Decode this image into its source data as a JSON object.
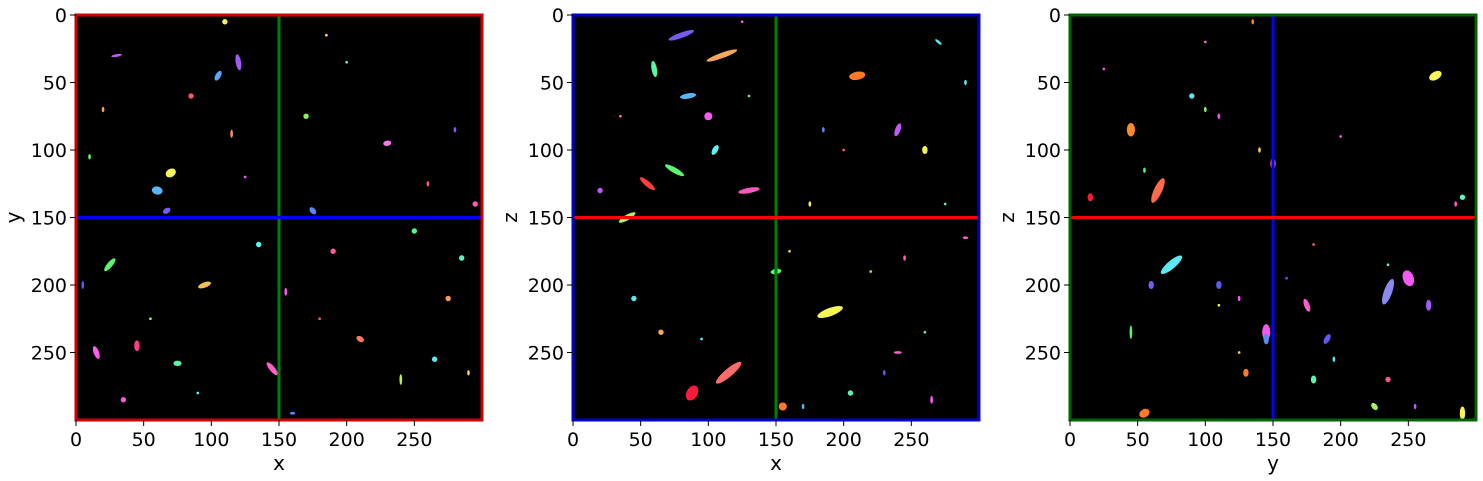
{
  "figure": {
    "background": "#ffffff",
    "image_background": "#000000"
  },
  "chart_data": [
    {
      "type": "heatmap",
      "subtype": "image-slice",
      "xlabel": "x",
      "ylabel": "y",
      "xlim": [
        0,
        300
      ],
      "ylim": [
        300,
        0
      ],
      "xticks": [
        0,
        50,
        100,
        150,
        200,
        250
      ],
      "yticks": [
        0,
        50,
        100,
        150,
        200,
        250
      ],
      "frame_color": "#cc0000",
      "crosshair": {
        "vertical": {
          "value": 150,
          "color": "#008000"
        },
        "horizontal": {
          "value": 150,
          "color": "#0000ff"
        }
      },
      "grid": false,
      "blobs": [
        [
          15,
          250,
          "#ff5ef0",
          2,
          5,
          -20
        ],
        [
          25,
          185,
          "#5af56c",
          2,
          6,
          40
        ],
        [
          30,
          30,
          "#c05af5",
          1,
          4,
          80
        ],
        [
          45,
          245,
          "#ff3d8a",
          2,
          4,
          0
        ],
        [
          60,
          130,
          "#5ab4f5",
          4,
          3,
          10
        ],
        [
          67,
          145,
          "#7a5af5",
          2,
          3,
          60
        ],
        [
          70,
          117,
          "#f5f55a",
          4,
          3,
          -30
        ],
        [
          75,
          258,
          "#5af5a8",
          3,
          2,
          0
        ],
        [
          85,
          60,
          "#f55a5a",
          2,
          2,
          0
        ],
        [
          95,
          200,
          "#f5c05a",
          2,
          5,
          70
        ],
        [
          105,
          45,
          "#5aa8f5",
          4,
          2,
          -60
        ],
        [
          115,
          88,
          "#ff8a5a",
          1,
          3,
          0
        ],
        [
          120,
          35,
          "#a05af5",
          2,
          6,
          -10
        ],
        [
          135,
          170,
          "#5af5f5",
          2,
          2,
          20
        ],
        [
          145,
          262,
          "#ff5ec8",
          2,
          6,
          -40
        ],
        [
          155,
          205,
          "#f55af0",
          1,
          3,
          0
        ],
        [
          170,
          75,
          "#8af55a",
          2,
          2,
          0
        ],
        [
          175,
          145,
          "#5a8af5",
          3,
          2,
          50
        ],
        [
          185,
          15,
          "#f5e85a",
          1,
          1,
          0
        ],
        [
          190,
          175,
          "#ff5a9a",
          2,
          2,
          0
        ],
        [
          200,
          35,
          "#5af5d0",
          1,
          1,
          0
        ],
        [
          210,
          240,
          "#ff7a5a",
          3,
          2,
          30
        ],
        [
          225,
          150,
          "#5a5af5",
          1,
          1,
          0
        ],
        [
          230,
          95,
          "#f57ae8",
          2,
          3,
          80
        ],
        [
          240,
          270,
          "#a8f55a",
          1,
          4,
          0
        ],
        [
          250,
          160,
          "#5af58a",
          2,
          2,
          -20
        ],
        [
          260,
          125,
          "#f55a8a",
          1,
          2,
          0
        ],
        [
          265,
          255,
          "#5ae8f5",
          2,
          2,
          10
        ],
        [
          275,
          210,
          "#ff9a5a",
          2,
          2,
          0
        ],
        [
          280,
          85,
          "#8a5af5",
          1,
          2,
          0
        ],
        [
          285,
          180,
          "#5af5c0",
          2,
          2,
          40
        ],
        [
          290,
          265,
          "#f5d05a",
          1,
          2,
          0
        ],
        [
          295,
          140,
          "#ff5ab4",
          2,
          2,
          0
        ],
        [
          10,
          105,
          "#5af55a",
          1,
          2,
          0
        ],
        [
          20,
          70,
          "#f5a85a",
          1,
          2,
          0
        ],
        [
          5,
          200,
          "#5a5af0",
          1,
          3,
          0
        ],
        [
          35,
          285,
          "#f55ad8",
          2,
          2,
          0
        ],
        [
          90,
          280,
          "#5af5e8",
          1,
          1,
          0
        ],
        [
          110,
          5,
          "#f5f55a",
          2,
          2,
          0
        ],
        [
          160,
          295,
          "#5a8af5",
          2,
          1,
          0
        ],
        [
          180,
          225,
          "#ff5a5a",
          1,
          1,
          0
        ],
        [
          55,
          225,
          "#8af5a0",
          1,
          1,
          0
        ],
        [
          125,
          120,
          "#f55af5",
          1,
          1,
          0
        ]
      ]
    },
    {
      "type": "heatmap",
      "subtype": "image-slice",
      "xlabel": "x",
      "ylabel": "z",
      "xlim": [
        0,
        300
      ],
      "ylim": [
        300,
        0
      ],
      "xticks": [
        0,
        50,
        100,
        150,
        200,
        250
      ],
      "yticks": [
        0,
        50,
        100,
        150,
        200,
        250
      ],
      "frame_color": "#0000cc",
      "crosshair": {
        "vertical": {
          "value": 150,
          "color": "#008000"
        },
        "horizontal": {
          "value": 150,
          "color": "#ff0000"
        }
      },
      "grid": false,
      "blobs": [
        [
          80,
          15,
          "#7a5af5",
          2,
          10,
          70
        ],
        [
          110,
          30,
          "#f5a85a",
          2,
          12,
          70
        ],
        [
          60,
          40,
          "#5af5a0",
          2,
          6,
          -10
        ],
        [
          85,
          60,
          "#5ab4f5",
          2,
          6,
          80
        ],
        [
          100,
          75,
          "#f55af0",
          3,
          3,
          0
        ],
        [
          105,
          100,
          "#5af5f5",
          2,
          4,
          30
        ],
        [
          75,
          115,
          "#5af56c",
          2,
          8,
          -60
        ],
        [
          55,
          125,
          "#ff3d3d",
          2,
          7,
          -50
        ],
        [
          40,
          150,
          "#a8f55a",
          2,
          7,
          60
        ],
        [
          130,
          130,
          "#f55ac0",
          2,
          8,
          80
        ],
        [
          175,
          140,
          "#f5f55a",
          1,
          2,
          0
        ],
        [
          210,
          45,
          "#ff7a2a",
          3,
          6,
          80
        ],
        [
          240,
          85,
          "#c05af5",
          2,
          5,
          20
        ],
        [
          260,
          100,
          "#f5f55a",
          2,
          3,
          0
        ],
        [
          270,
          20,
          "#5ae8f5",
          1,
          3,
          -50
        ],
        [
          150,
          190,
          "#5af56c",
          2,
          4,
          80
        ],
        [
          190,
          220,
          "#f5f55a",
          3,
          10,
          70
        ],
        [
          205,
          280,
          "#5af5a8",
          2,
          2,
          0
        ],
        [
          245,
          180,
          "#ff5ec8",
          1,
          2,
          0
        ],
        [
          115,
          265,
          "#ff6a6a",
          3,
          12,
          50
        ],
        [
          88,
          280,
          "#ff1a3d",
          4,
          6,
          30
        ],
        [
          155,
          290,
          "#ff7a2a",
          3,
          3,
          0
        ],
        [
          170,
          290,
          "#5ab4f5",
          1,
          2,
          0
        ],
        [
          240,
          250,
          "#ff5ec8",
          3,
          1,
          0
        ],
        [
          230,
          265,
          "#5a5af5",
          1,
          2,
          0
        ],
        [
          265,
          285,
          "#f55af0",
          1,
          3,
          0
        ],
        [
          290,
          165,
          "#ff5ec8",
          2,
          1,
          0
        ],
        [
          290,
          50,
          "#5ae8f5",
          1,
          2,
          0
        ],
        [
          130,
          60,
          "#5af55a",
          1,
          1,
          0
        ],
        [
          150,
          235,
          "#ff5a5a",
          1,
          1,
          0
        ],
        [
          20,
          130,
          "#c05af5",
          2,
          2,
          0
        ],
        [
          45,
          210,
          "#5ae8f5",
          2,
          2,
          0
        ],
        [
          65,
          235,
          "#f5a85a",
          2,
          2,
          0
        ],
        [
          185,
          85,
          "#5a8af5",
          1,
          2,
          0
        ],
        [
          220,
          190,
          "#8af55a",
          1,
          1,
          0
        ],
        [
          260,
          235,
          "#5af5c0",
          1,
          1,
          0
        ],
        [
          160,
          175,
          "#f5d05a",
          1,
          1,
          0
        ],
        [
          95,
          240,
          "#5af5e8",
          1,
          1,
          0
        ],
        [
          125,
          5,
          "#f55ad8",
          1,
          1,
          0
        ],
        [
          35,
          75,
          "#ff7a5a",
          1,
          1,
          0
        ],
        [
          275,
          140,
          "#5af5a8",
          1,
          1,
          0
        ],
        [
          200,
          100,
          "#f55a8a",
          1,
          1,
          0
        ]
      ]
    },
    {
      "type": "heatmap",
      "subtype": "image-slice",
      "xlabel": "y",
      "ylabel": "z",
      "xlim": [
        0,
        300
      ],
      "ylim": [
        300,
        0
      ],
      "xticks": [
        0,
        50,
        100,
        150,
        200,
        250
      ],
      "yticks": [
        0,
        50,
        100,
        150,
        200,
        250
      ],
      "frame_color": "#006400",
      "crosshair": {
        "vertical": {
          "value": 150,
          "color": "#0000ff"
        },
        "horizontal": {
          "value": 150,
          "color": "#ff0000"
        }
      },
      "grid": false,
      "blobs": [
        [
          15,
          135,
          "#ff1a3d",
          2,
          3,
          0
        ],
        [
          45,
          85,
          "#ff8a2a",
          3,
          5,
          0
        ],
        [
          55,
          115,
          "#5af56c",
          1,
          2,
          0
        ],
        [
          65,
          130,
          "#f55a5a",
          1,
          1,
          0
        ],
        [
          65,
          130,
          "#ff6a4a",
          3,
          10,
          25
        ],
        [
          90,
          60,
          "#5ae8f5",
          2,
          2,
          0
        ],
        [
          100,
          70,
          "#8af55a",
          1,
          2,
          0
        ],
        [
          110,
          75,
          "#f55af0",
          1,
          2,
          0
        ],
        [
          75,
          185,
          "#5ae8f5",
          3,
          10,
          50
        ],
        [
          60,
          200,
          "#7a5af5",
          2,
          3,
          0
        ],
        [
          45,
          235,
          "#5af56c",
          1,
          5,
          0
        ],
        [
          110,
          200,
          "#5a5af5",
          2,
          3,
          0
        ],
        [
          125,
          210,
          "#f55af5",
          1,
          2,
          0
        ],
        [
          145,
          235,
          "#f55af0",
          3,
          6,
          0
        ],
        [
          175,
          215,
          "#ff5ec8",
          2,
          5,
          -20
        ],
        [
          190,
          240,
          "#5a5af5",
          2,
          4,
          30
        ],
        [
          180,
          270,
          "#5af5a8",
          2,
          3,
          0
        ],
        [
          195,
          255,
          "#5ae8f5",
          1,
          2,
          0
        ],
        [
          250,
          195,
          "#f55af0",
          4,
          6,
          -20
        ],
        [
          235,
          205,
          "#8a8af5",
          3,
          10,
          20
        ],
        [
          265,
          215,
          "#a05af5",
          2,
          4,
          0
        ],
        [
          270,
          45,
          "#f5f55a",
          3,
          5,
          60
        ],
        [
          285,
          140,
          "#ff5ec8",
          1,
          2,
          0
        ],
        [
          290,
          295,
          "#f5f55a",
          2,
          5,
          0
        ],
        [
          255,
          290,
          "#c05af5",
          1,
          2,
          0
        ],
        [
          235,
          270,
          "#f55a8a",
          2,
          2,
          0
        ],
        [
          225,
          290,
          "#a8f55a",
          2,
          3,
          -40
        ],
        [
          55,
          295,
          "#ff7a2a",
          3,
          4,
          60
        ],
        [
          130,
          265,
          "#ff7a2a",
          2,
          3,
          0
        ],
        [
          145,
          240,
          "#5a8af5",
          2,
          4,
          0
        ],
        [
          150,
          110,
          "#f55a8a",
          2,
          4,
          0
        ],
        [
          140,
          100,
          "#f5d05a",
          1,
          2,
          0
        ],
        [
          135,
          5,
          "#ff7a2a",
          1,
          2,
          0
        ],
        [
          100,
          20,
          "#ff5ec8",
          1,
          1,
          0
        ],
        [
          25,
          40,
          "#f55af0",
          1,
          1,
          0
        ],
        [
          180,
          170,
          "#ff5a5a",
          1,
          1,
          0
        ],
        [
          235,
          185,
          "#5af5a8",
          1,
          1,
          0
        ],
        [
          160,
          195,
          "#5a5af5",
          1,
          1,
          0
        ],
        [
          200,
          90,
          "#f55ad8",
          1,
          1,
          0
        ],
        [
          125,
          250,
          "#f5d05a",
          1,
          1,
          0
        ],
        [
          290,
          135,
          "#5af5c0",
          2,
          2,
          0
        ],
        [
          110,
          215,
          "#f5f55a",
          1,
          1,
          0
        ]
      ]
    }
  ]
}
